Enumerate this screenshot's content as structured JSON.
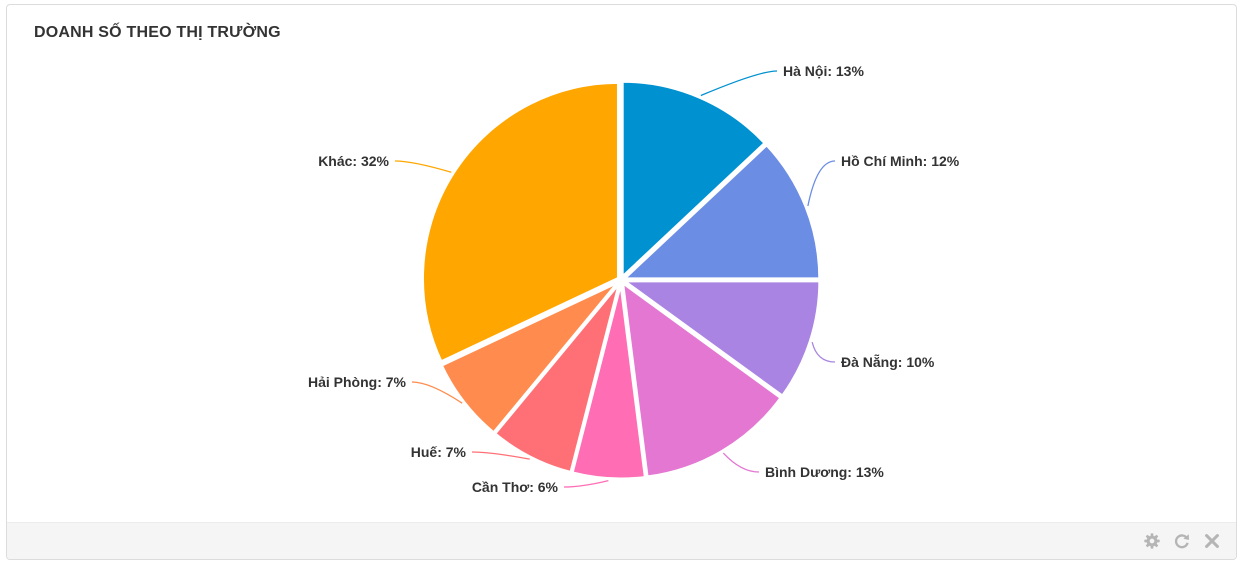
{
  "panel": {
    "title": "DOANH SỐ THEO THỊ TRƯỜNG",
    "tools": {
      "settings_icon": "gear-icon",
      "refresh_icon": "refresh-icon",
      "close_icon": "close-icon"
    }
  },
  "chart_data": {
    "type": "pie",
    "title": "DOANH SỐ THEO THỊ TRƯỜNG",
    "categories": [
      "Hà Nội",
      "Hồ Chí Minh",
      "Đà Nẵng",
      "Bình Dương",
      "Cần Thơ",
      "Huế",
      "Hải Phòng",
      "Khác"
    ],
    "values": [
      13,
      12,
      10,
      13,
      6,
      7,
      7,
      32
    ],
    "labels": [
      "Hà Nội: 13%",
      "Hồ Chí Minh: 12%",
      "Đà Nẵng: 10%",
      "Bình Dương: 13%",
      "Cần Thơ: 6%",
      "Huế: 7%",
      "Hải Phòng: 7%",
      "Khác: 32%"
    ],
    "colors": [
      "#0091d1",
      "#6b8de3",
      "#aa84e2",
      "#e477d2",
      "#ff6eb4",
      "#ff7076",
      "#ff8b4e",
      "#ffa600"
    ],
    "unit": "%"
  }
}
